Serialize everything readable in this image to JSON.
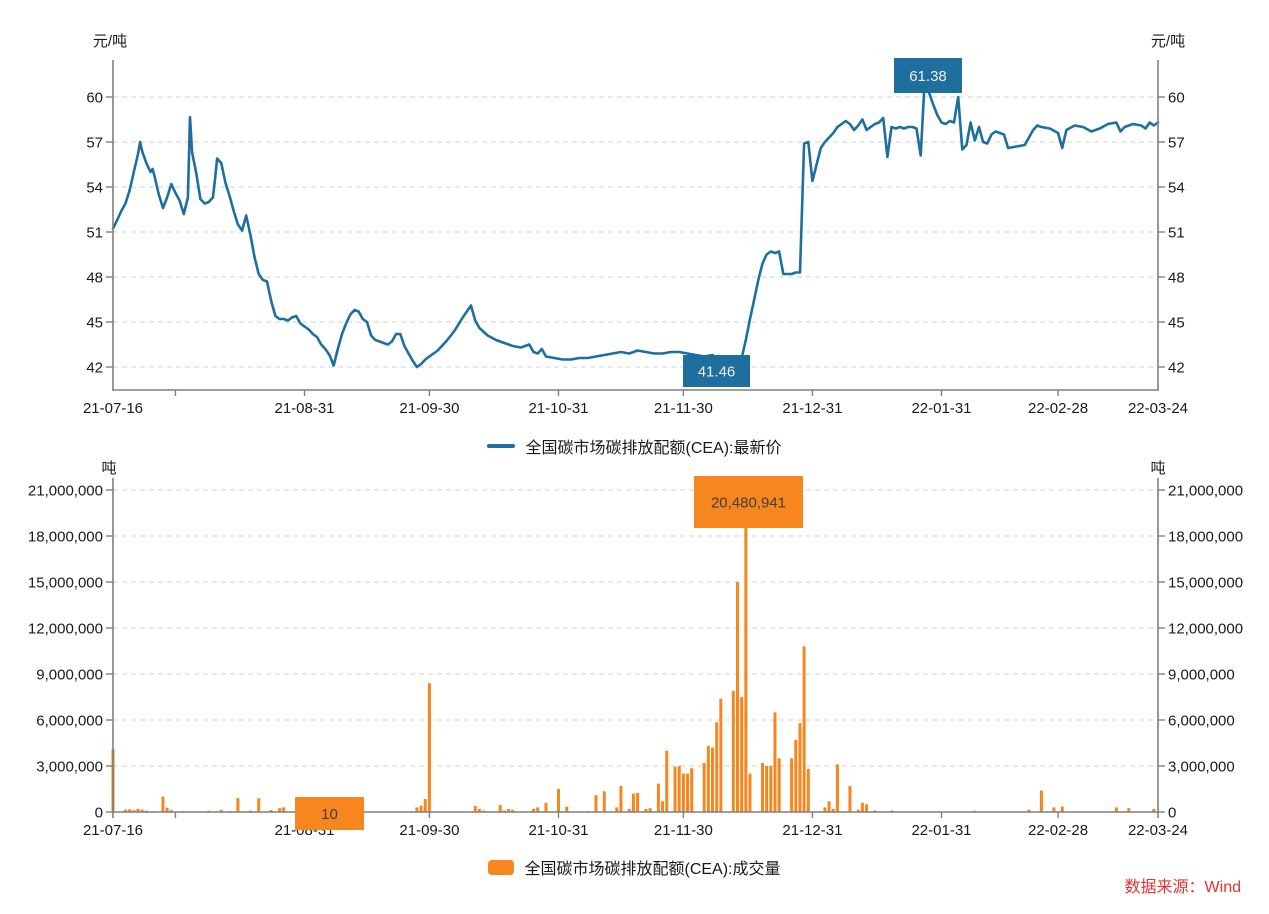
{
  "page": {
    "background": "#FFFFFF"
  },
  "source_note": "数据来源：Wind",
  "colors": {
    "grid": "#D9D9D9",
    "axis": "#7F7F7F",
    "tick_text": "#1A1A1A",
    "source_text": "#E73230",
    "annotation_text_dark": "#404040",
    "annotation_text_light": "#F0EFE6"
  },
  "chart_data": [
    {
      "type": "line",
      "legend_label": "全国碳市场碳排放配额(CEA):最新价",
      "unit_left": "元/吨",
      "unit_right": "元/吨",
      "color": "#1E6F9E",
      "ylim": [
        40.5,
        62.5
      ],
      "y_ticks": [
        42,
        45,
        48,
        51,
        54,
        57,
        60
      ],
      "y_tick_labels": [
        "42",
        "45",
        "48",
        "51",
        "54",
        "57",
        "60"
      ],
      "x_tick_labels": [
        "21-07-16",
        "21-08-31",
        "21-09-30",
        "21-10-31",
        "21-11-30",
        "21-12-31",
        "22-01-31",
        "22-02-28",
        "22-03-24"
      ],
      "x_tick_days": [
        0,
        46,
        76,
        107,
        137,
        168,
        199,
        227,
        251
      ],
      "x_minor_tick_days": [
        15
      ],
      "xlim_days": [
        0,
        251
      ],
      "grid": "dashed",
      "legend_position": "bottom-center",
      "points": [
        [
          0,
          51.23
        ],
        [
          1,
          51.8
        ],
        [
          2,
          52.4
        ],
        [
          3,
          52.9
        ],
        [
          4,
          53.8
        ],
        [
          5,
          55.0
        ],
        [
          6,
          56.2
        ],
        [
          6.5,
          57.0
        ],
        [
          7,
          56.4
        ],
        [
          8,
          55.6
        ],
        [
          9,
          55.0
        ],
        [
          9.5,
          55.2
        ],
        [
          10,
          54.7
        ],
        [
          11,
          53.5
        ],
        [
          12,
          52.6
        ],
        [
          13,
          53.3
        ],
        [
          14,
          54.2
        ],
        [
          15,
          53.6
        ],
        [
          16,
          53.1
        ],
        [
          17,
          52.2
        ],
        [
          18,
          53.3
        ],
        [
          18.5,
          58.66
        ],
        [
          19,
          56.3
        ],
        [
          20,
          54.9
        ],
        [
          21,
          53.2
        ],
        [
          22,
          52.9
        ],
        [
          23,
          53.0
        ],
        [
          24,
          53.3
        ],
        [
          24.5,
          54.5
        ],
        [
          25,
          55.9
        ],
        [
          26,
          55.6
        ],
        [
          27,
          54.3
        ],
        [
          28,
          53.4
        ],
        [
          29,
          52.4
        ],
        [
          30,
          51.5
        ],
        [
          31,
          51.1
        ],
        [
          32,
          52.1
        ],
        [
          33,
          50.8
        ],
        [
          34,
          49.3
        ],
        [
          35,
          48.2
        ],
        [
          36,
          47.8
        ],
        [
          37,
          47.7
        ],
        [
          38,
          46.4
        ],
        [
          39,
          45.4
        ],
        [
          40,
          45.2
        ],
        [
          41,
          45.2
        ],
        [
          42,
          45.1
        ],
        [
          43,
          45.3
        ],
        [
          44,
          45.4
        ],
        [
          45,
          44.9
        ],
        [
          46,
          44.7
        ],
        [
          47,
          44.5
        ],
        [
          48,
          44.2
        ],
        [
          49,
          44.0
        ],
        [
          50,
          43.5
        ],
        [
          51,
          43.2
        ],
        [
          52,
          42.8
        ],
        [
          53,
          42.1
        ],
        [
          54,
          43.2
        ],
        [
          55,
          44.2
        ],
        [
          56,
          44.9
        ],
        [
          57,
          45.5
        ],
        [
          58,
          45.8
        ],
        [
          59,
          45.7
        ],
        [
          60,
          45.2
        ],
        [
          61,
          45.0
        ],
        [
          62,
          44.1
        ],
        [
          63,
          43.8
        ],
        [
          64,
          43.7
        ],
        [
          65,
          43.6
        ],
        [
          66,
          43.5
        ],
        [
          67,
          43.7
        ],
        [
          68,
          44.2
        ],
        [
          69,
          44.2
        ],
        [
          70,
          43.4
        ],
        [
          71,
          42.9
        ],
        [
          72,
          42.4
        ],
        [
          73,
          42.0
        ],
        [
          74,
          42.2
        ],
        [
          75,
          42.5
        ],
        [
          76,
          42.7
        ],
        [
          78,
          43.1
        ],
        [
          80,
          43.7
        ],
        [
          82,
          44.4
        ],
        [
          84,
          45.3
        ],
        [
          86,
          46.1
        ],
        [
          87,
          45.1
        ],
        [
          88,
          44.6
        ],
        [
          90,
          44.1
        ],
        [
          92,
          43.8
        ],
        [
          94,
          43.6
        ],
        [
          96,
          43.4
        ],
        [
          98,
          43.3
        ],
        [
          100,
          43.5
        ],
        [
          101,
          43.0
        ],
        [
          102,
          42.9
        ],
        [
          103,
          43.2
        ],
        [
          104,
          42.7
        ],
        [
          106,
          42.6
        ],
        [
          108,
          42.5
        ],
        [
          110,
          42.5
        ],
        [
          112,
          42.6
        ],
        [
          114,
          42.6
        ],
        [
          116,
          42.7
        ],
        [
          118,
          42.8
        ],
        [
          120,
          42.9
        ],
        [
          122,
          43.0
        ],
        [
          124,
          42.9
        ],
        [
          126,
          43.1
        ],
        [
          128,
          43.0
        ],
        [
          130,
          42.9
        ],
        [
          132,
          42.9
        ],
        [
          134,
          43.0
        ],
        [
          136,
          43.0
        ],
        [
          138,
          42.9
        ],
        [
          140,
          42.8
        ],
        [
          142,
          42.7
        ],
        [
          144,
          42.8
        ],
        [
          145,
          42.6
        ],
        [
          146,
          42.4
        ],
        [
          147,
          42.0
        ],
        [
          148,
          41.6
        ],
        [
          149,
          41.46
        ],
        [
          150,
          41.9
        ],
        [
          151,
          42.6
        ],
        [
          152,
          43.8
        ],
        [
          153,
          45.2
        ],
        [
          154,
          46.5
        ],
        [
          155,
          47.8
        ],
        [
          156,
          48.9
        ],
        [
          157,
          49.5
        ],
        [
          158,
          49.7
        ],
        [
          159,
          49.6
        ],
        [
          160,
          49.7
        ],
        [
          161,
          48.2
        ],
        [
          162,
          48.2
        ],
        [
          163,
          48.2
        ],
        [
          164,
          48.3
        ],
        [
          165,
          48.3
        ],
        [
          166,
          56.9
        ],
        [
          167,
          57.0
        ],
        [
          168,
          54.4
        ],
        [
          169,
          55.5
        ],
        [
          170,
          56.6
        ],
        [
          171,
          57.0
        ],
        [
          172,
          57.3
        ],
        [
          173,
          57.6
        ],
        [
          174,
          58.0
        ],
        [
          175,
          58.2
        ],
        [
          176,
          58.4
        ],
        [
          177,
          58.2
        ],
        [
          178,
          57.8
        ],
        [
          179,
          58.1
        ],
        [
          180,
          58.5
        ],
        [
          181,
          57.8
        ],
        [
          182,
          58.0
        ],
        [
          183,
          58.2
        ],
        [
          184,
          58.3
        ],
        [
          185,
          58.6
        ],
        [
          186,
          56.0
        ],
        [
          187,
          58.0
        ],
        [
          188,
          57.9
        ],
        [
          189,
          58.0
        ],
        [
          190,
          57.9
        ],
        [
          191,
          58.0
        ],
        [
          192,
          58.0
        ],
        [
          193,
          57.9
        ],
        [
          194,
          56.1
        ],
        [
          195,
          61.38
        ],
        [
          196,
          60.3
        ],
        [
          197,
          59.5
        ],
        [
          198,
          58.8
        ],
        [
          199,
          58.3
        ],
        [
          200,
          58.2
        ],
        [
          201,
          58.4
        ],
        [
          202,
          58.3
        ],
        [
          203,
          60.0
        ],
        [
          204,
          56.5
        ],
        [
          205,
          56.8
        ],
        [
          206,
          58.3
        ],
        [
          207,
          57.1
        ],
        [
          208,
          58.0
        ],
        [
          209,
          57.0
        ],
        [
          210,
          56.9
        ],
        [
          211,
          57.5
        ],
        [
          212,
          57.7
        ],
        [
          213,
          57.6
        ],
        [
          214,
          57.5
        ],
        [
          215,
          56.6
        ],
        [
          217,
          56.7
        ],
        [
          219,
          56.8
        ],
        [
          221,
          57.8
        ],
        [
          222,
          58.1
        ],
        [
          223,
          58.0
        ],
        [
          225,
          57.9
        ],
        [
          227,
          57.6
        ],
        [
          228,
          56.6
        ],
        [
          229,
          57.8
        ],
        [
          231,
          58.1
        ],
        [
          233,
          58.0
        ],
        [
          235,
          57.7
        ],
        [
          237,
          57.9
        ],
        [
          239,
          58.2
        ],
        [
          241,
          58.3
        ],
        [
          242,
          57.7
        ],
        [
          243,
          58.0
        ],
        [
          245,
          58.2
        ],
        [
          247,
          58.1
        ],
        [
          248,
          57.9
        ],
        [
          249,
          58.3
        ],
        [
          250,
          58.1
        ],
        [
          251,
          58.3
        ]
      ],
      "annotations": [
        {
          "label": "61.38",
          "day": 195,
          "value": 61.38,
          "meaning": "max price"
        },
        {
          "label": "41.46",
          "day": 149,
          "value": 41.46,
          "meaning": "min price"
        }
      ]
    },
    {
      "type": "bar",
      "legend_label": "全国碳市场碳排放配额(CEA):成交量",
      "unit_left": "吨",
      "unit_right": "吨",
      "color": "#F6861D",
      "ylim": [
        0,
        21000000
      ],
      "y_ticks": [
        0,
        3000000,
        6000000,
        9000000,
        12000000,
        15000000,
        18000000,
        21000000
      ],
      "y_tick_labels": [
        "0",
        "3,000,000",
        "6,000,000",
        "9,000,000",
        "12,000,000",
        "15,000,000",
        "18,000,000",
        "21,000,000"
      ],
      "x_tick_labels": [
        "21-07-16",
        "21-08-31",
        "21-09-30",
        "21-10-31",
        "21-11-30",
        "21-12-31",
        "22-01-31",
        "22-02-28",
        "22-03-24"
      ],
      "x_tick_days": [
        0,
        46,
        76,
        107,
        137,
        168,
        199,
        227,
        251
      ],
      "x_minor_tick_days": [
        15
      ],
      "xlim_days": [
        0,
        251
      ],
      "grid": "dashed",
      "legend_position": "bottom-center",
      "points": [
        [
          0,
          4100000
        ],
        [
          3,
          150000
        ],
        [
          4,
          180000
        ],
        [
          5,
          120000
        ],
        [
          6,
          210000
        ],
        [
          7,
          160000
        ],
        [
          8,
          90000
        ],
        [
          10,
          60000
        ],
        [
          12,
          1000000
        ],
        [
          13,
          280000
        ],
        [
          14,
          120000
        ],
        [
          17,
          60000
        ],
        [
          19,
          50000
        ],
        [
          23,
          90000
        ],
        [
          26,
          140000
        ],
        [
          28,
          70000
        ],
        [
          30,
          900000
        ],
        [
          33,
          90000
        ],
        [
          35,
          900000
        ],
        [
          38,
          130000
        ],
        [
          40,
          250000
        ],
        [
          41,
          300000
        ],
        [
          52,
          10
        ],
        [
          59,
          30000
        ],
        [
          63,
          50000
        ],
        [
          70,
          50000
        ],
        [
          73,
          300000
        ],
        [
          74,
          420000
        ],
        [
          75,
          850000
        ],
        [
          76,
          8400000
        ],
        [
          87,
          400000
        ],
        [
          88,
          200000
        ],
        [
          89,
          100000
        ],
        [
          93,
          450000
        ],
        [
          94,
          100000
        ],
        [
          95,
          200000
        ],
        [
          96,
          150000
        ],
        [
          101,
          200000
        ],
        [
          102,
          300000
        ],
        [
          104,
          600000
        ],
        [
          107,
          1500000
        ],
        [
          109,
          350000
        ],
        [
          114,
          60000
        ],
        [
          116,
          1100000
        ],
        [
          118,
          1350000
        ],
        [
          121,
          300000
        ],
        [
          122,
          1700000
        ],
        [
          124,
          200000
        ],
        [
          125,
          1200000
        ],
        [
          126,
          1250000
        ],
        [
          128,
          200000
        ],
        [
          129,
          250000
        ],
        [
          131,
          1850000
        ],
        [
          132,
          700000
        ],
        [
          133,
          4000000
        ],
        [
          135,
          2950000
        ],
        [
          136,
          3000000
        ],
        [
          137,
          2500000
        ],
        [
          138,
          2500000
        ],
        [
          139,
          2850000
        ],
        [
          142,
          3200000
        ],
        [
          143,
          4300000
        ],
        [
          144,
          4200000
        ],
        [
          145,
          5850000
        ],
        [
          146,
          7400000
        ],
        [
          149,
          7900000
        ],
        [
          150,
          15000000
        ],
        [
          151,
          7500000
        ],
        [
          152,
          20480941
        ],
        [
          153,
          2500000
        ],
        [
          156,
          3200000
        ],
        [
          157,
          3000000
        ],
        [
          158,
          3000000
        ],
        [
          159,
          6500000
        ],
        [
          160,
          3500000
        ],
        [
          163,
          3500000
        ],
        [
          164,
          4700000
        ],
        [
          165,
          5800000
        ],
        [
          166,
          10800000
        ],
        [
          167,
          2800000
        ],
        [
          171,
          300000
        ],
        [
          172,
          700000
        ],
        [
          173,
          200000
        ],
        [
          174,
          3100000
        ],
        [
          177,
          1700000
        ],
        [
          179,
          150000
        ],
        [
          180,
          600000
        ],
        [
          181,
          500000
        ],
        [
          183,
          100000
        ],
        [
          187,
          100000
        ],
        [
          207,
          80000
        ],
        [
          220,
          150000
        ],
        [
          223,
          1400000
        ],
        [
          226,
          300000
        ],
        [
          228,
          350000
        ],
        [
          241,
          300000
        ],
        [
          244,
          250000
        ],
        [
          250,
          200000
        ]
      ],
      "annotations": [
        {
          "label": "20,480,941",
          "day": 152,
          "value": 20480941,
          "meaning": "max volume"
        },
        {
          "label": "10",
          "day": 52,
          "value": 10,
          "meaning": "min volume"
        }
      ]
    }
  ]
}
